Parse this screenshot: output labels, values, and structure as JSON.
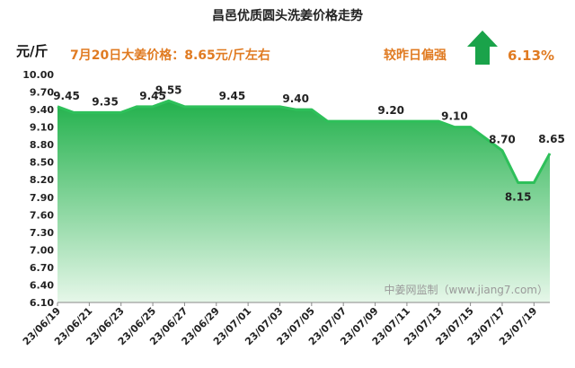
{
  "header": {
    "title": "昌邑优质圆头洗姜价格走势",
    "unit": "元/斤",
    "headline": "7月20日大姜价格：8.65元/斤左右",
    "compare_label": "较昨日偏强",
    "change_pct": "6.13%",
    "trend_icon": "arrow-up-icon",
    "trend_color": "#1aa34a"
  },
  "watermark": "中姜网监制（www.jiang7.com）",
  "colors": {
    "line": "#2ec05a",
    "fill_top": "#22b14c",
    "fill_bottom": "#e6f7e9",
    "headline": "#e07b22"
  },
  "chart_data": {
    "type": "area",
    "title": "昌邑优质圆头洗姜价格走势",
    "ylabel": "元/斤",
    "xlabel": "",
    "ylim": [
      6.1,
      10.0
    ],
    "yticks": [
      "10.00",
      "9.70",
      "9.40",
      "9.10",
      "8.80",
      "8.50",
      "8.20",
      "7.90",
      "7.60",
      "7.30",
      "7.00",
      "6.70",
      "6.40",
      "6.10"
    ],
    "grid": false,
    "x": [
      "23/06/19",
      "23/06/20",
      "23/06/21",
      "23/06/22",
      "23/06/23",
      "23/06/24",
      "23/06/25",
      "23/06/26",
      "23/06/27",
      "23/06/28",
      "23/06/29",
      "23/06/30",
      "23/07/01",
      "23/07/02",
      "23/07/03",
      "23/07/04",
      "23/07/05",
      "23/07/06",
      "23/07/07",
      "23/07/08",
      "23/07/09",
      "23/07/10",
      "23/07/11",
      "23/07/12",
      "23/07/13",
      "23/07/14",
      "23/07/15",
      "23/07/16",
      "23/07/17",
      "23/07/18",
      "23/07/19",
      "23/07/20"
    ],
    "x_tick_labels": [
      "23/06/19",
      "23/06/21",
      "23/06/23",
      "23/06/25",
      "23/06/27",
      "23/06/29",
      "23/07/01",
      "23/07/03",
      "23/07/05",
      "23/07/07",
      "23/07/09",
      "23/07/11",
      "23/07/13",
      "23/07/15",
      "23/07/17",
      "23/07/19"
    ],
    "series": [
      {
        "values": [
          9.45,
          9.35,
          9.35,
          9.35,
          9.35,
          9.45,
          9.45,
          9.55,
          9.45,
          9.45,
          9.45,
          9.45,
          9.45,
          9.45,
          9.45,
          9.4,
          9.4,
          9.2,
          9.2,
          9.2,
          9.2,
          9.2,
          9.2,
          9.2,
          9.2,
          9.1,
          9.1,
          8.9,
          8.7,
          8.15,
          8.15,
          8.65
        ]
      }
    ],
    "data_labels": [
      {
        "x": "23/06/19",
        "text": "9.45"
      },
      {
        "x": "23/06/22",
        "text": "9.35"
      },
      {
        "x": "23/06/25",
        "text": "9.45"
      },
      {
        "x": "23/06/26",
        "text": "9.55"
      },
      {
        "x": "23/06/30",
        "text": "9.45"
      },
      {
        "x": "23/07/04",
        "text": "9.40"
      },
      {
        "x": "23/07/10",
        "text": "9.20"
      },
      {
        "x": "23/07/14",
        "text": "9.10"
      },
      {
        "x": "23/07/17",
        "text": "8.70"
      },
      {
        "x": "23/07/18",
        "text": "8.15"
      },
      {
        "x": "23/07/20",
        "text": "8.65"
      }
    ]
  }
}
